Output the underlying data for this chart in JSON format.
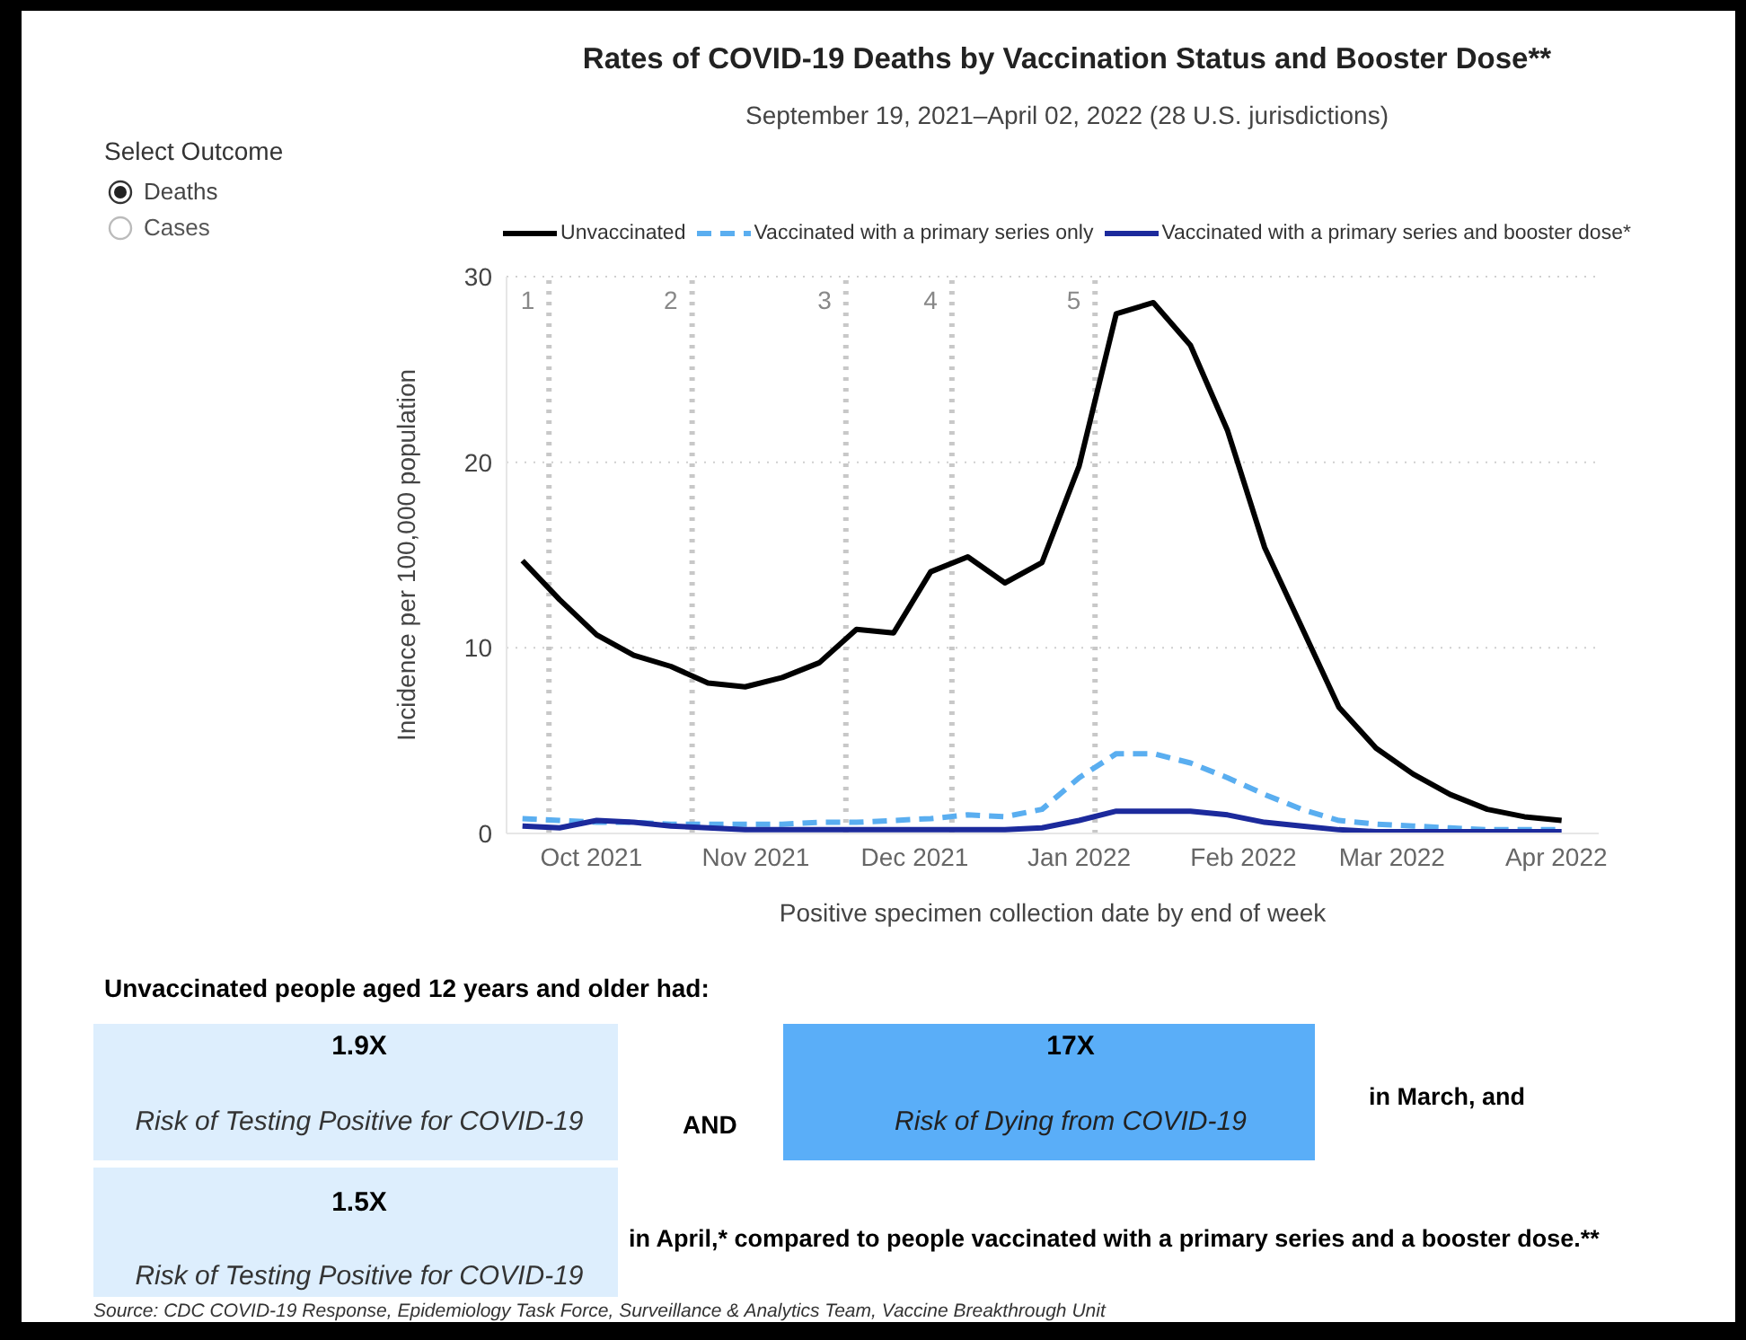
{
  "chart_data": {
    "type": "line",
    "title": "Rates of COVID-19 Deaths by Vaccination Status and Booster Dose**",
    "subtitle": "September 19, 2021–April 02, 2022 (28 U.S. jurisdictions)",
    "xlabel": "Positive specimen collection date by end of week",
    "ylabel": "Incidence per 100,000 population",
    "x": [
      "2021-09-18",
      "2021-09-25",
      "2021-10-02",
      "2021-10-09",
      "2021-10-16",
      "2021-10-23",
      "2021-10-30",
      "2021-11-06",
      "2021-11-13",
      "2021-11-20",
      "2021-11-27",
      "2021-12-04",
      "2021-12-11",
      "2021-12-18",
      "2021-12-25",
      "2022-01-01",
      "2022-01-08",
      "2022-01-15",
      "2022-01-22",
      "2022-01-29",
      "2022-02-05",
      "2022-02-12",
      "2022-02-19",
      "2022-02-26",
      "2022-03-05",
      "2022-03-12",
      "2022-03-19",
      "2022-03-26",
      "2022-04-02"
    ],
    "series": [
      {
        "name": "Unvaccinated",
        "color": "#000000",
        "line_style": "solid",
        "values": [
          14.7,
          12.6,
          10.7,
          9.6,
          9.0,
          8.1,
          7.9,
          8.4,
          9.2,
          11.0,
          10.8,
          14.1,
          14.9,
          13.5,
          14.6,
          19.8,
          28.0,
          28.6,
          26.3,
          21.7,
          15.4,
          11.1,
          6.8,
          4.6,
          3.2,
          2.1,
          1.3,
          0.9,
          0.7
        ]
      },
      {
        "name": "Vaccinated with a primary series only",
        "color": "#5aaef0",
        "line_style": "dashed",
        "values": [
          0.8,
          0.7,
          0.6,
          0.6,
          0.5,
          0.5,
          0.5,
          0.5,
          0.6,
          0.6,
          0.7,
          0.8,
          1.0,
          0.9,
          1.3,
          3.0,
          4.3,
          4.3,
          3.8,
          3.0,
          2.1,
          1.3,
          0.7,
          0.5,
          0.4,
          0.3,
          0.2,
          0.2,
          0.2
        ]
      },
      {
        "name": "Vaccinated with a primary series and booster dose*",
        "color": "#1c2a9c",
        "line_style": "solid",
        "values": [
          0.4,
          0.3,
          0.7,
          0.6,
          0.4,
          0.3,
          0.2,
          0.2,
          0.2,
          0.2,
          0.2,
          0.2,
          0.2,
          0.2,
          0.3,
          0.7,
          1.2,
          1.2,
          1.2,
          1.0,
          0.6,
          0.4,
          0.2,
          0.1,
          0.1,
          0.1,
          0.1,
          0.1,
          0.1
        ]
      }
    ],
    "xlim": [
      "2021-09-15",
      "2022-04-09"
    ],
    "xticks": [
      {
        "value": "2021-10-01",
        "label": "Oct 2021"
      },
      {
        "value": "2021-11-01",
        "label": "Nov 2021"
      },
      {
        "value": "2021-12-01",
        "label": "Dec 2021"
      },
      {
        "value": "2022-01-01",
        "label": "Jan 2022"
      },
      {
        "value": "2022-02-01",
        "label": "Feb 2022"
      },
      {
        "value": "2022-03-01",
        "label": "Mar 2022"
      },
      {
        "value": "2022-04-01",
        "label": "Apr 2022"
      }
    ],
    "ylim": [
      0,
      30
    ],
    "yticks": [
      0,
      10,
      20,
      30
    ],
    "grid": "y",
    "legend": "top",
    "marker": "none",
    "ref_lines": [
      {
        "axis": "x",
        "value": "2021-09-23",
        "label": "1",
        "color": "#c8c8c8",
        "line_style": "dotted"
      },
      {
        "axis": "x",
        "value": "2021-10-20",
        "label": "2",
        "color": "#c8c8c8",
        "line_style": "dotted"
      },
      {
        "axis": "x",
        "value": "2021-11-18",
        "label": "3",
        "color": "#c8c8c8",
        "line_style": "dotted"
      },
      {
        "axis": "x",
        "value": "2021-12-08",
        "label": "4",
        "color": "#c8c8c8",
        "line_style": "dotted"
      },
      {
        "axis": "x",
        "value": "2022-01-04",
        "label": "5",
        "color": "#c8c8c8",
        "line_style": "dotted"
      }
    ],
    "annotations": [
      "Select Outcome",
      "Deaths",
      "Cases",
      "Unvaccinated people aged 12 years and older had:",
      "1.9X",
      "Risk of Testing Positive for COVID-19",
      "AND",
      "17X",
      "Risk of Dying from COVID-19",
      "in March, and",
      "1.5X",
      "Risk of Testing Positive for COVID-19",
      "in April,* compared to people vaccinated with a primary series and a booster dose.**",
      "Source: CDC COVID-19 Response, Epidemiology Task Force, Surveillance & Analytics Team, Vaccine Breakthrough Unit"
    ]
  }
}
